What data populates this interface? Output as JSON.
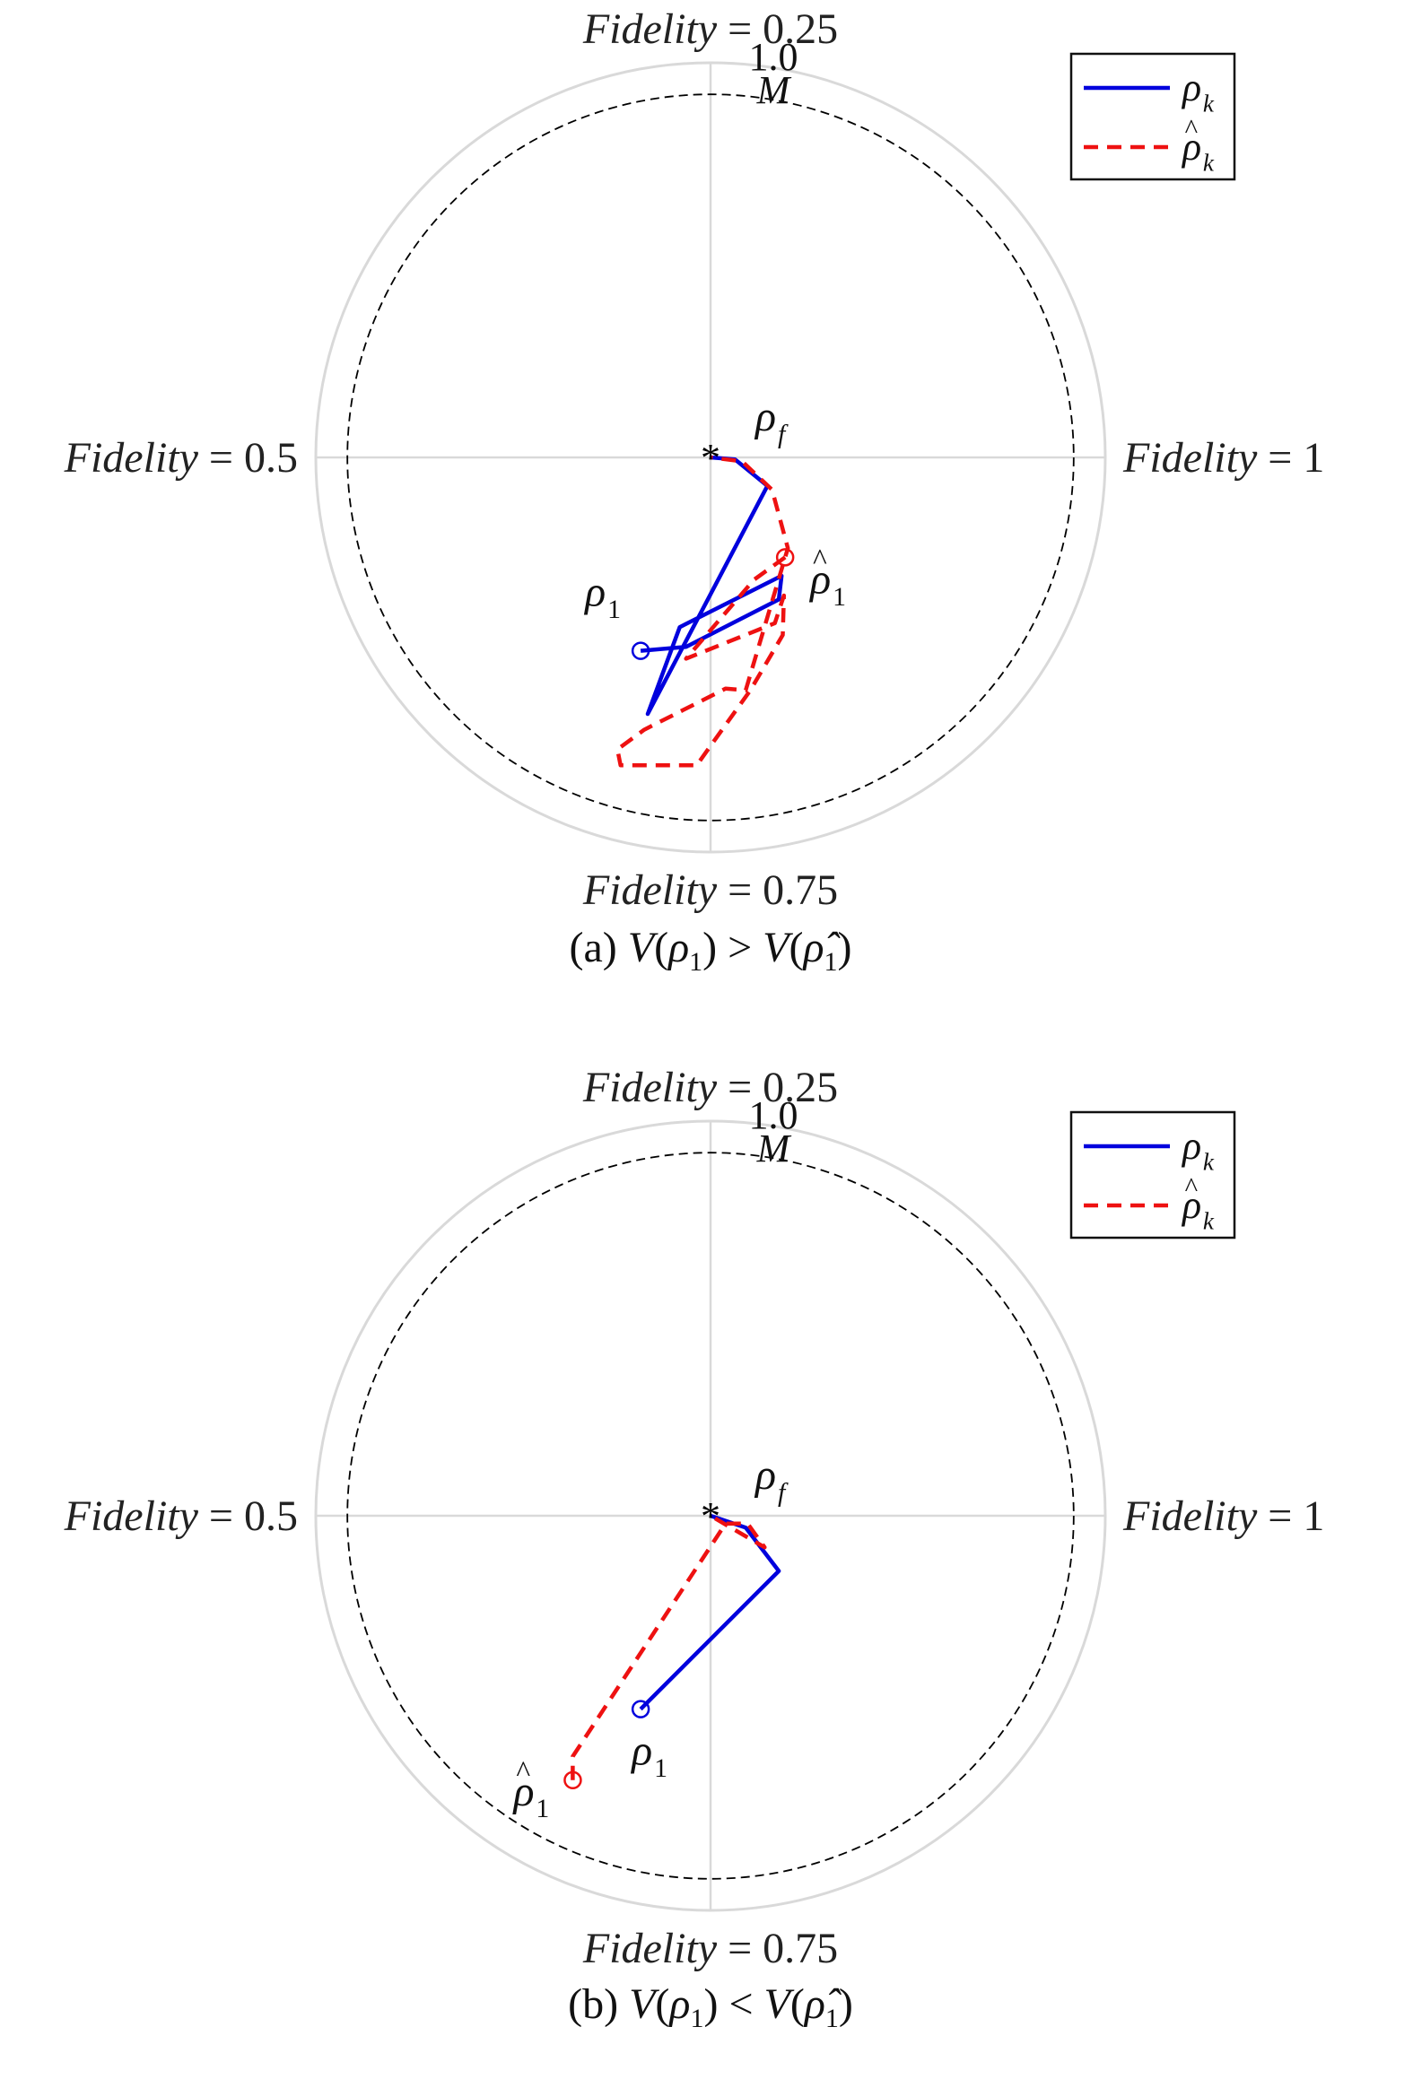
{
  "colors": {
    "rho": "#0000dd",
    "rho_hat": "#ee1111",
    "grid": "#d9d9d9",
    "reference_circle": "#000000",
    "target_marker": "#000000"
  },
  "chart_data": [
    {
      "type": "polar-line",
      "panel": "a",
      "caption": "(a) V(ρ1) > V(ρ̂1)",
      "angular_labels": {
        "top": "Fidelity = 0.25",
        "right": "Fidelity = 1",
        "bottom": "Fidelity = 0.75",
        "left": "Fidelity = 0.5"
      },
      "radial_tick": "1.0",
      "radial_max": 1.0,
      "reference_circle_label": "M",
      "reference_circle_radius": 0.92,
      "legend": {
        "placement": "top-right",
        "entries": [
          "ρk",
          "ρ̂k"
        ]
      },
      "annotations": {
        "target": "ρf",
        "start": "ρ1",
        "start_hat": "ρ̂1"
      },
      "series": [
        {
          "name": "ρk",
          "style": "solid",
          "color": "#0000dd",
          "points": [
            [
              -0.177,
              -0.49
            ],
            [
              -0.062,
              -0.48
            ],
            [
              0.173,
              -0.36
            ],
            [
              0.18,
              -0.3
            ],
            [
              -0.078,
              -0.43
            ],
            [
              -0.159,
              -0.65
            ],
            [
              0.144,
              -0.072
            ],
            [
              0.062,
              -0.005
            ],
            [
              0.0,
              0.0
            ]
          ]
        },
        {
          "name": "ρ̂k",
          "style": "dashed",
          "color": "#ee1111",
          "points": [
            [
              0.189,
              -0.253
            ],
            [
              0.11,
              -0.31
            ],
            [
              -0.062,
              -0.51
            ],
            [
              0.163,
              -0.42
            ],
            [
              0.186,
              -0.35
            ],
            [
              0.183,
              -0.45
            ],
            [
              0.101,
              -0.59
            ],
            [
              -0.035,
              -0.78
            ],
            [
              -0.228,
              -0.78
            ],
            [
              -0.236,
              -0.74
            ],
            [
              -0.168,
              -0.69
            ],
            [
              0.038,
              -0.586
            ],
            [
              0.089,
              -0.59
            ],
            [
              0.196,
              -0.23
            ],
            [
              0.156,
              -0.082
            ],
            [
              0.08,
              -0.01
            ],
            [
              0.0,
              0.0
            ]
          ]
        }
      ]
    },
    {
      "type": "polar-line",
      "panel": "b",
      "caption": "(b) V(ρ1) < V(ρ̂1)",
      "angular_labels": {
        "top": "Fidelity = 0.25",
        "right": "Fidelity = 1",
        "bottom": "Fidelity = 0.75",
        "left": "Fidelity = 0.5"
      },
      "radial_tick": "1.0",
      "radial_max": 1.0,
      "reference_circle_label": "M",
      "reference_circle_radius": 0.92,
      "legend": {
        "placement": "top-right",
        "entries": [
          "ρk",
          "ρ̂k"
        ]
      },
      "annotations": {
        "target": "ρf",
        "start": "ρ1",
        "start_hat": "ρ̂1"
      },
      "series": [
        {
          "name": "ρk",
          "style": "solid",
          "color": "#0000dd",
          "points": [
            [
              -0.177,
              -0.49
            ],
            [
              0.173,
              -0.14
            ],
            [
              0.089,
              -0.03
            ],
            [
              0.0,
              0.0
            ]
          ]
        },
        {
          "name": "ρ̂k",
          "style": "dashed",
          "color": "#ee1111",
          "points": [
            [
              -0.349,
              -0.67
            ],
            [
              -0.349,
              -0.61
            ],
            [
              0.038,
              -0.02
            ],
            [
              0.094,
              -0.02
            ],
            [
              0.137,
              -0.08
            ],
            [
              0.0,
              0.0
            ]
          ]
        }
      ]
    }
  ]
}
